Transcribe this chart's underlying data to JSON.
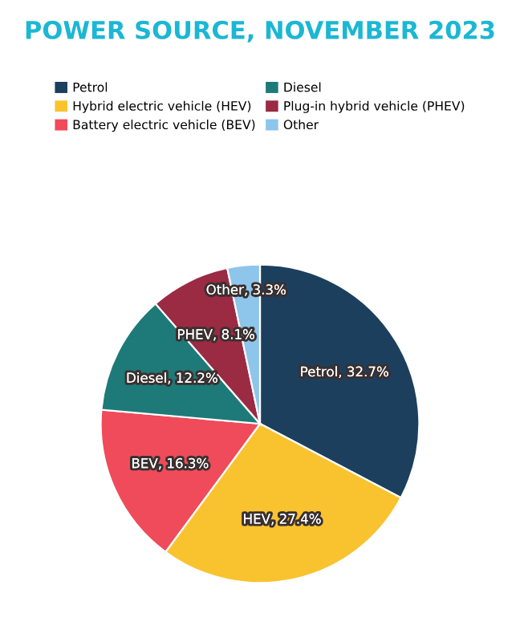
{
  "chart_data": {
    "type": "pie",
    "title": "POWER SOURCE, NOVEMBER 2023",
    "categories": [
      "Petrol",
      "Hybrid electric vehicle (HEV)",
      "Battery electric vehicle (BEV)",
      "Diesel",
      "Plug-in hybrid vehicle (PHEV)",
      "Other"
    ],
    "values": [
      32.7,
      27.4,
      16.3,
      12.2,
      8.1,
      3.3
    ],
    "colors": [
      "#1c3f5e",
      "#f9c32f",
      "#ef4b5a",
      "#1e7a78",
      "#9b2a43",
      "#8ec5ea"
    ],
    "value_labels": [
      "Petrol, 32.7%",
      "HEV, 27.4%",
      "BEV, 16.3%",
      "Diesel, 12.2%",
      "PHEV, 8.1%",
      "Other, 3.3%"
    ],
    "legend": "top"
  }
}
